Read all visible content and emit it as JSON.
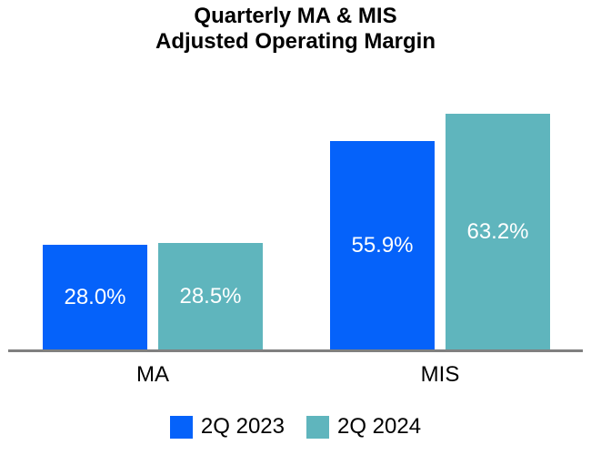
{
  "chart_data": {
    "type": "bar",
    "title": "Quarterly MA & MIS Adjusted Operating Margin",
    "title_lines": [
      "Quarterly MA & MIS",
      "Adjusted Operating Margin"
    ],
    "categories": [
      "MA",
      "MIS"
    ],
    "series": [
      {
        "name": "2Q 2023",
        "color": "#0562fa",
        "values": [
          28.0,
          55.9
        ],
        "labels": [
          "28.0%",
          "55.9%"
        ]
      },
      {
        "name": "2Q 2024",
        "color": "#5fb5bd",
        "values": [
          28.5,
          63.2
        ],
        "labels": [
          "28.5%",
          "63.2%"
        ]
      }
    ],
    "value_suffix": "%",
    "ylim": [
      0,
      71.7
    ],
    "grid": false,
    "y_axis_visible": false,
    "legend_position": "bottom",
    "axis_line_color": "#808080",
    "bar_label_color": "#ffffff"
  }
}
